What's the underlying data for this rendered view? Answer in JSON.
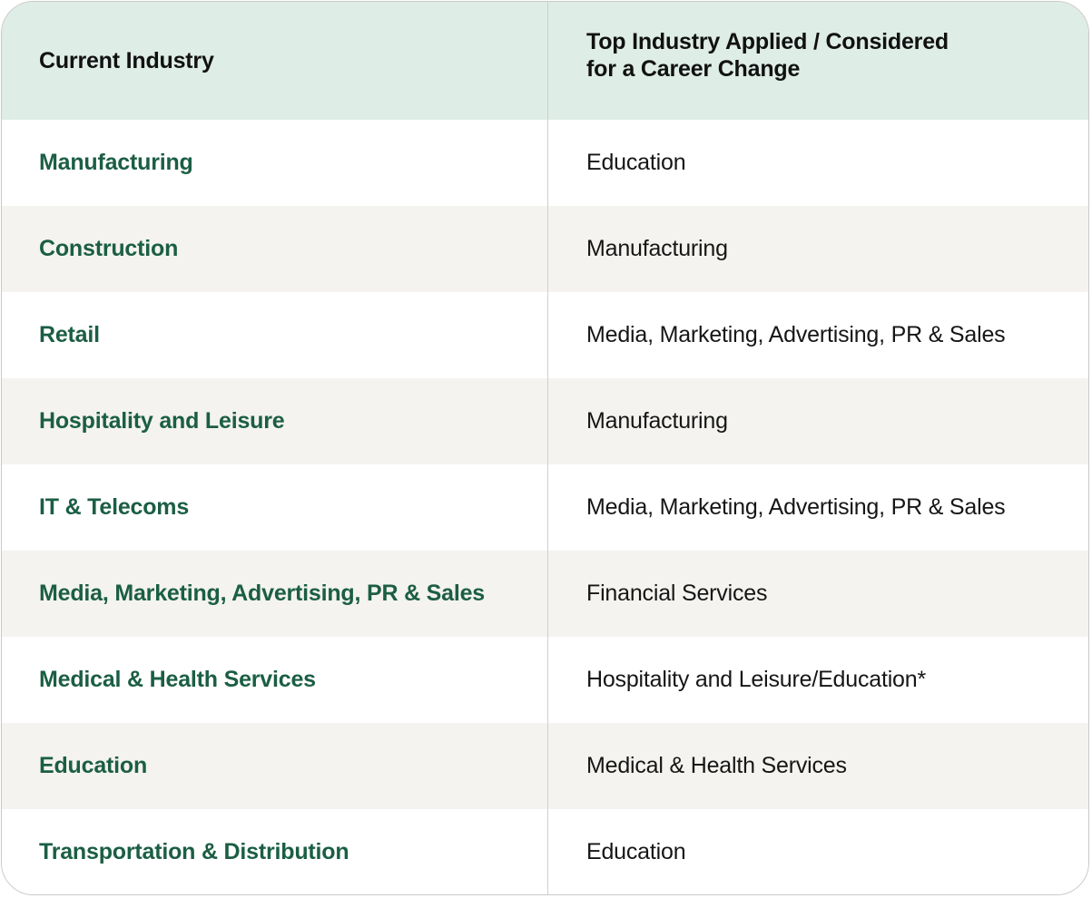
{
  "table": {
    "headers": {
      "current_industry": "Current Industry",
      "top_industry_line1": "Top Industry Applied / Considered",
      "top_industry_line2": "for a Career Change"
    },
    "rows": [
      {
        "current": "Manufacturing",
        "top": "Education"
      },
      {
        "current": "Construction",
        "top": "Manufacturing"
      },
      {
        "current": "Retail",
        "top": "Media, Marketing, Advertising, PR & Sales"
      },
      {
        "current": "Hospitality and Leisure",
        "top": "Manufacturing"
      },
      {
        "current": "IT & Telecoms",
        "top": "Media, Marketing, Advertising, PR & Sales"
      },
      {
        "current": "Media, Marketing, Advertising, PR & Sales",
        "top": "Financial Services"
      },
      {
        "current": "Medical & Health Services",
        "top": "Hospitality and Leisure/Education*"
      },
      {
        "current": "Education",
        "top": "Medical & Health Services"
      },
      {
        "current": "Transportation & Distribution",
        "top": "Education"
      }
    ]
  },
  "colors": {
    "header_bg": "#deede6",
    "industry_text": "#1b5e44",
    "alt_row_bg": "#f4f3ef"
  }
}
